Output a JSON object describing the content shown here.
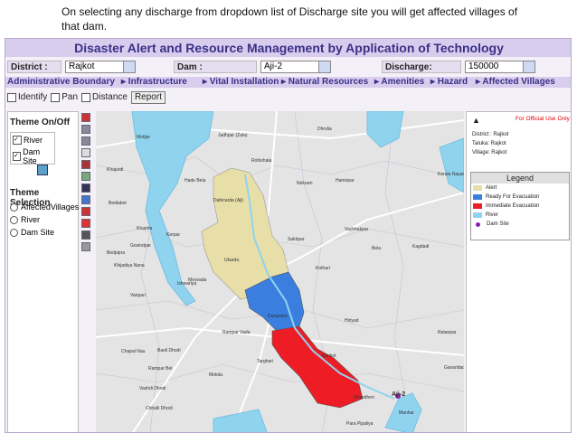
{
  "caption": "On selecting any discharge from dropdown list of Discharge site you will get affected villages of that dam.",
  "header": {
    "title": "Disaster Alert and Resource Management by Application of Technology"
  },
  "filters": [
    {
      "label": "District :",
      "value": "Rajkot"
    },
    {
      "label": "Dam :",
      "value": "Aji-2"
    },
    {
      "label": "Discharge:",
      "value": "150000"
    }
  ],
  "menu": [
    "Administrative Boundary",
    "Infrastructure",
    "Vital Installation",
    "Natural Resources",
    "Amenities",
    "Hazard",
    "Affected Villages"
  ],
  "tools": {
    "checkboxes": [
      "Identify",
      "Pan",
      "Distance"
    ],
    "button": "Report"
  },
  "left_panel": {
    "theme_on_off": "Theme On/Off",
    "layers": [
      "River",
      "Dam Site"
    ],
    "theme_selection": "Theme Selection",
    "options": [
      "AffectedVillages",
      "River",
      "Dam Site"
    ]
  },
  "info": {
    "notice": "For Official Use Only",
    "lines": [
      "District : Rajkot",
      "Taluka: Rajkot",
      "Village: Rajkot"
    ]
  },
  "legend": {
    "title": "Legend",
    "items": [
      "Alert",
      "Ready For Evacuation",
      "Immediate Evacuation",
      "River",
      "Dam Site"
    ]
  },
  "map": {
    "labels": [
      "Jadhpar (Zala)",
      "Dhrolia",
      "Motijar",
      "Rohishala",
      "Khajurdi",
      "Hade Bela",
      "Dahicarda (Aji)",
      "Nekram",
      "Hamirpar",
      "Kerala Nayani",
      "Bediabet",
      "Khamta",
      "Kerpar",
      "Sakhpar",
      "Vachhakpar",
      "Kagdadi",
      "Govindpar",
      "Bedpipra",
      "Ukarda",
      "Bela",
      "Kothari",
      "Khijadiya Nana",
      "Mesvada",
      "Vanpari",
      "Ishwariya",
      "Dungarka",
      "Hiriyad",
      "Rampar Vada",
      "Ratanpar",
      "Chapal Nau",
      "Baoli Dhodi",
      "Rampar Bel",
      "Targhari",
      "Mokda",
      "Gavaridad",
      "Vashdi Dhodi",
      "Kankot",
      "Khandheri",
      "Aji-2",
      "Chhalli Dhodi",
      "Manhar",
      "Para Pipaliya"
    ]
  }
}
